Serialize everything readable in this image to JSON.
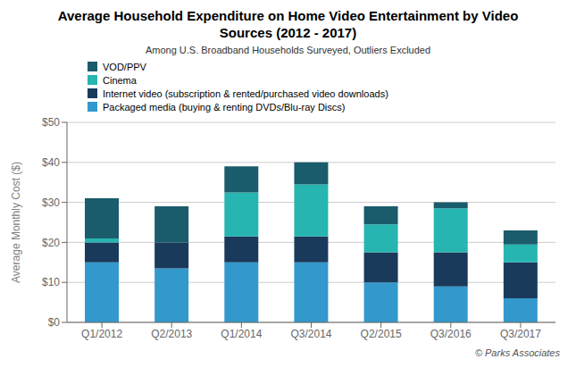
{
  "chart_data": {
    "type": "bar",
    "stacked": true,
    "title": "Average Household Expenditure on Home Video Entertainment by Video Sources (2012 - 2017)",
    "subtitle": "Among U.S. Broadband Households Surveyed, Outliers Excluded",
    "ylabel": "Average Monthly Cost ($)",
    "annotation": "© Parks Associates",
    "categories": [
      "Q1/2012",
      "Q2/2013",
      "Q1/2014",
      "Q3/2014",
      "Q2/2015",
      "Q3/2016",
      "Q3/2017"
    ],
    "series": [
      {
        "name": "Packaged media (buying & renting DVDs/Blu-ray Discs)",
        "color": "#3399CC",
        "values": [
          15.0,
          13.5,
          15.0,
          15.0,
          10.0,
          9.0,
          6.0
        ]
      },
      {
        "name": "Internet video (subscription & rented/purchased video downloads)",
        "color": "#1A3A5C",
        "values": [
          5.0,
          6.5,
          6.5,
          6.5,
          7.5,
          8.5,
          9.0
        ]
      },
      {
        "name": "Cinema",
        "color": "#26B5B0",
        "values": [
          1.0,
          0.0,
          11.0,
          13.0,
          7.0,
          11.0,
          4.5
        ]
      },
      {
        "name": "VOD/PPV",
        "color": "#1A5C6B",
        "values": [
          10.0,
          9.0,
          6.5,
          5.5,
          4.5,
          1.5,
          3.5
        ]
      }
    ],
    "ylim": [
      0,
      50
    ],
    "yticks": [
      {
        "value": 0,
        "label": "$0"
      },
      {
        "value": 10,
        "label": "$10"
      },
      {
        "value": 20,
        "label": "$20"
      },
      {
        "value": 30,
        "label": "$30"
      },
      {
        "value": 40,
        "label": "$40"
      },
      {
        "value": 50,
        "label": "$50"
      }
    ],
    "grid": true,
    "legend": "upper left"
  }
}
